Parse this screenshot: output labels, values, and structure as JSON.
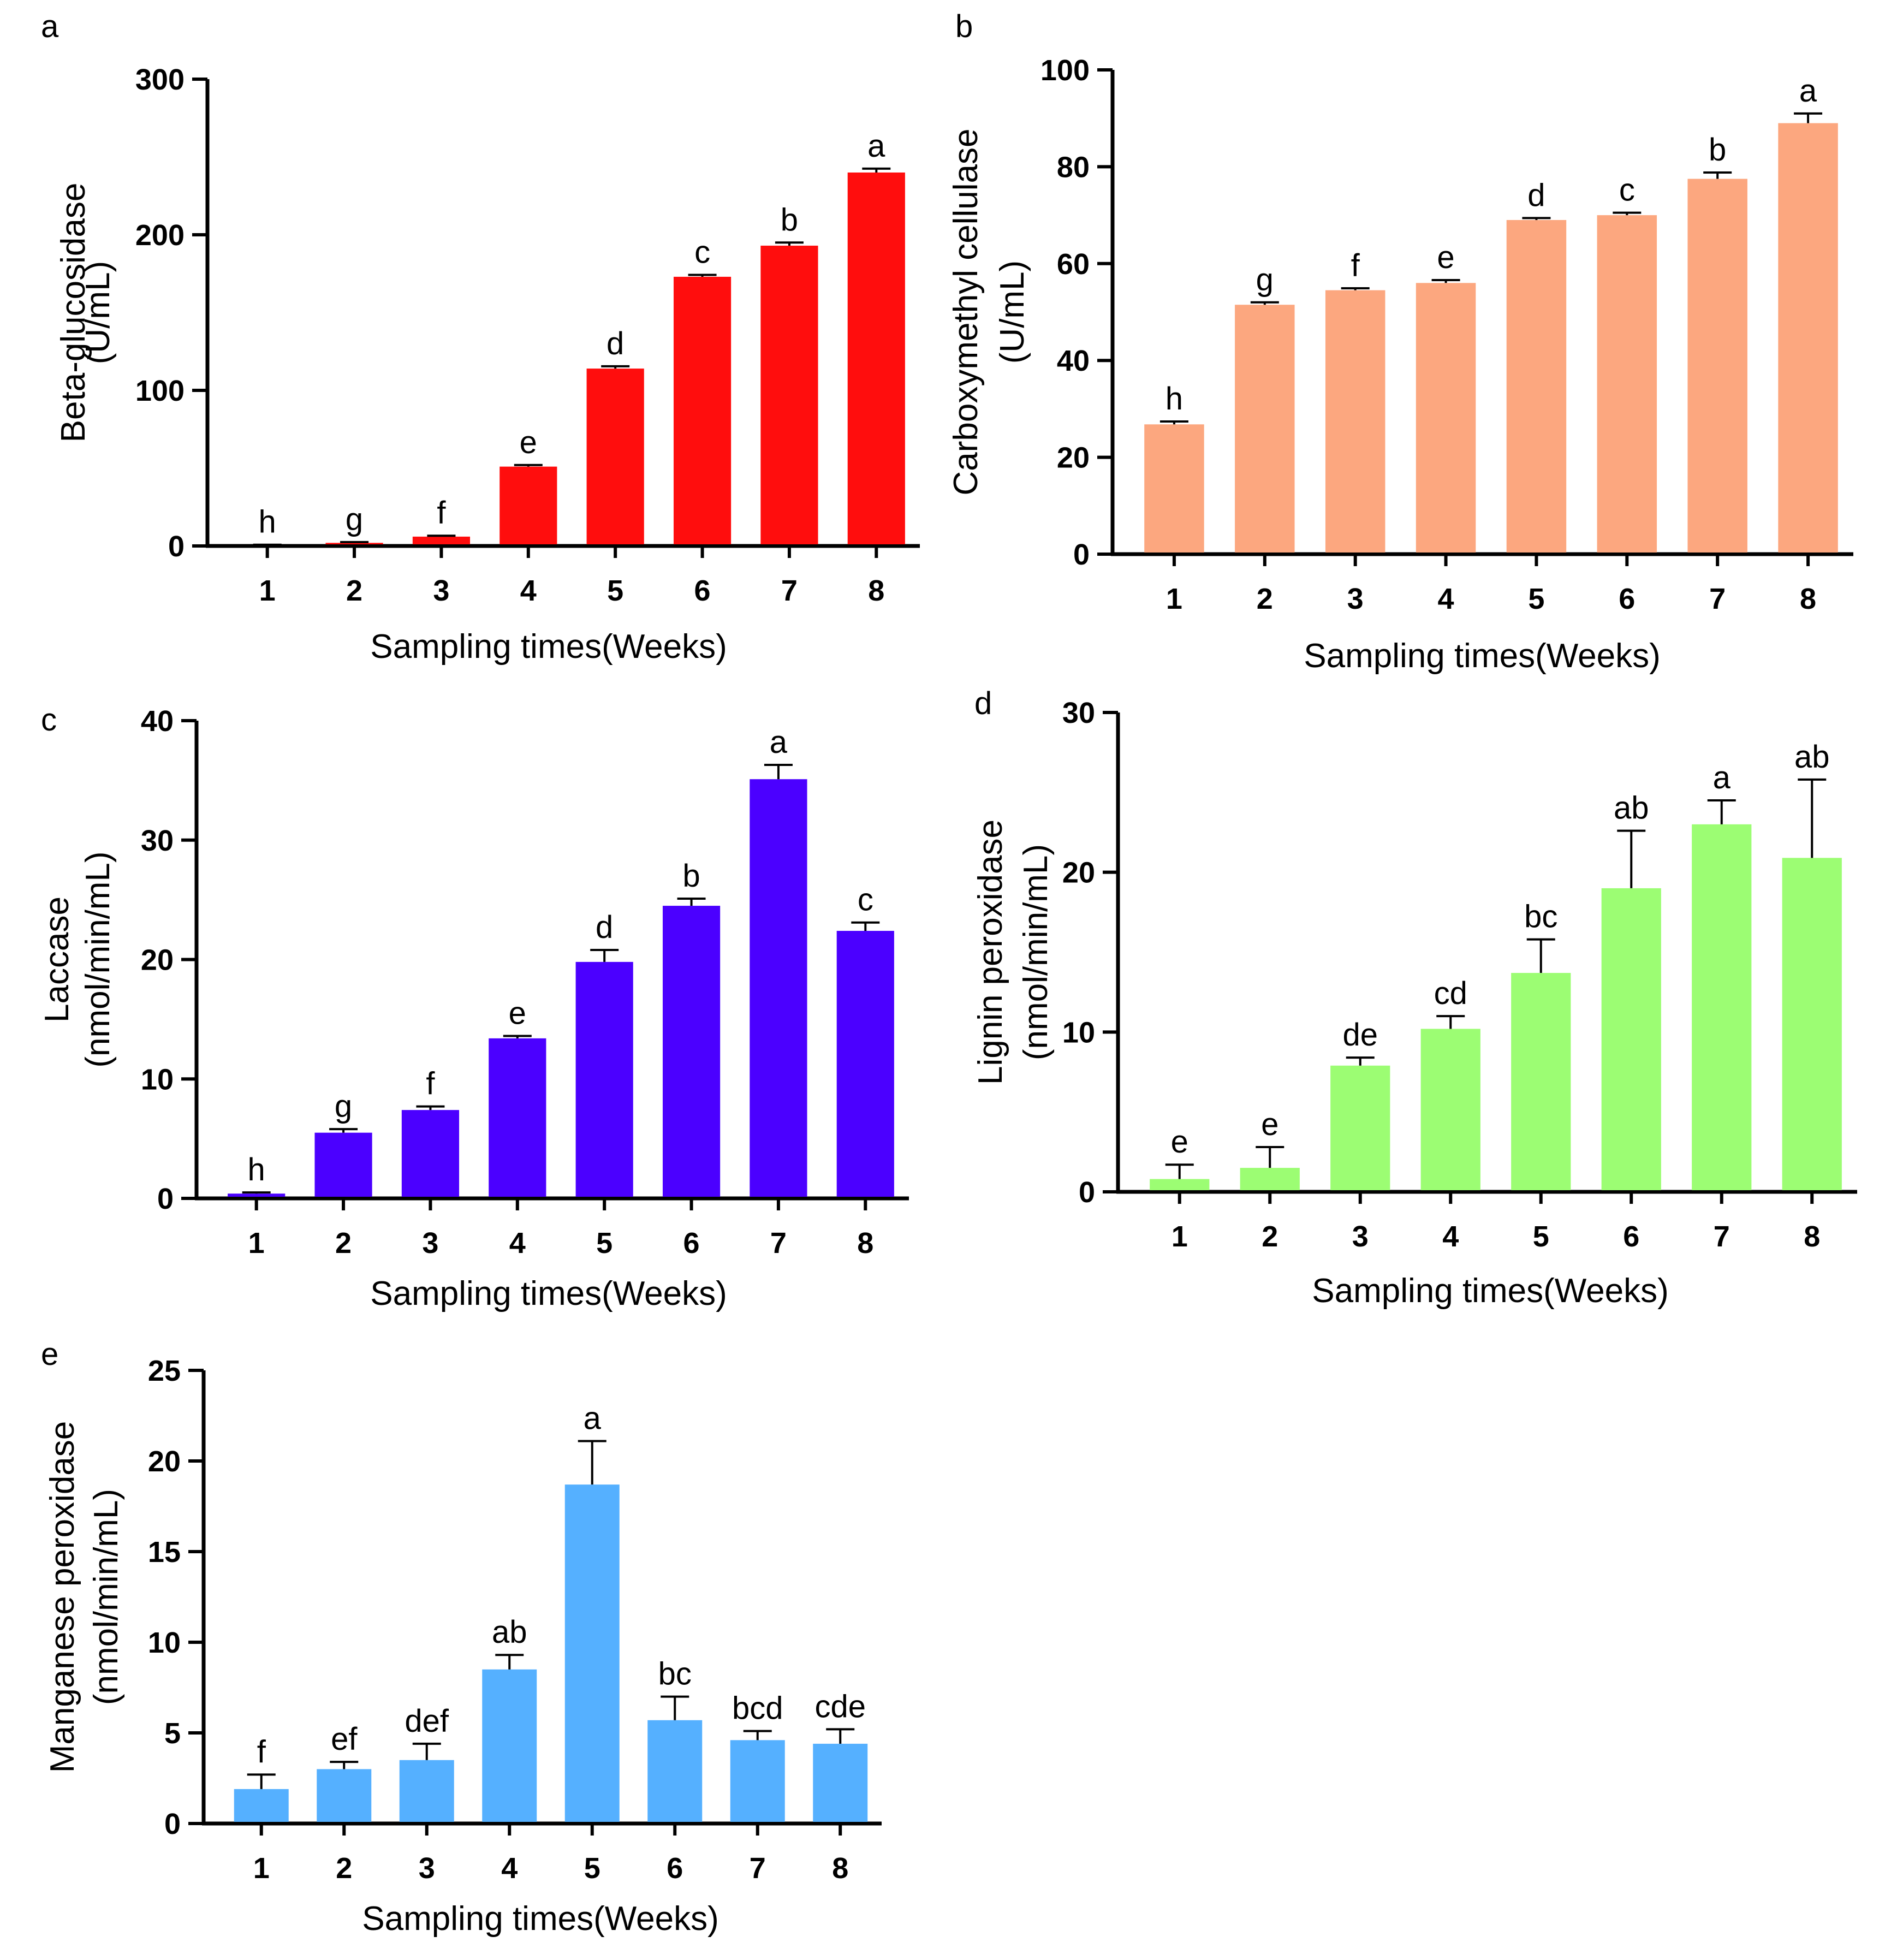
{
  "figure": {
    "panels": [
      "a",
      "b",
      "c",
      "d",
      "e"
    ]
  },
  "chart_data": [
    {
      "panel": "a",
      "type": "bar",
      "color": "#ff0d0d",
      "categories": [
        "1",
        "2",
        "3",
        "4",
        "5",
        "6",
        "7",
        "8"
      ],
      "values": [
        0.5,
        2,
        6,
        51,
        114,
        173,
        193,
        240
      ],
      "errors": [
        0.3,
        0.5,
        0.6,
        1,
        1.5,
        1.2,
        2,
        2.5
      ],
      "letters": [
        "h",
        "g",
        "f",
        "e",
        "d",
        "c",
        "b",
        "a"
      ],
      "ylabel_lines": [
        "Beta-glucosidase",
        "(U/mL)"
      ],
      "xlabel": "Sampling  times(Weeks)",
      "ylim": [
        0,
        300
      ],
      "yticks": [
        0,
        100,
        200,
        300
      ]
    },
    {
      "panel": "b",
      "type": "bar",
      "color": "#fca77f",
      "categories": [
        "1",
        "2",
        "3",
        "4",
        "5",
        "6",
        "7",
        "8"
      ],
      "values": [
        26.8,
        51.5,
        54.5,
        56,
        69,
        70,
        77.5,
        89
      ],
      "errors": [
        0.6,
        0.5,
        0.4,
        0.6,
        0.4,
        0.5,
        1.3,
        2
      ],
      "letters": [
        "h",
        "g",
        "f",
        "e",
        "d",
        "c",
        "b",
        "a"
      ],
      "ylabel_lines": [
        "Carboxymethyl cellulase",
        "(U/mL)"
      ],
      "xlabel": "Sampling  times(Weeks)",
      "ylim": [
        0,
        100
      ],
      "yticks": [
        0,
        20,
        40,
        60,
        80,
        100
      ]
    },
    {
      "panel": "c",
      "type": "bar",
      "color": "#4b00ff",
      "categories": [
        "1",
        "2",
        "3",
        "4",
        "5",
        "6",
        "7",
        "8"
      ],
      "values": [
        0.4,
        5.5,
        7.4,
        13.4,
        19.8,
        24.5,
        35.1,
        22.4
      ],
      "errors": [
        0.1,
        0.3,
        0.3,
        0.2,
        1.0,
        0.6,
        1.2,
        0.7
      ],
      "letters": [
        "h",
        "g",
        "f",
        "e",
        "d",
        "b",
        "a",
        "c"
      ],
      "ylabel_lines": [
        "Laccase",
        "(nmol/min/mL)"
      ],
      "xlabel": "Sampling  times(Weeks)",
      "ylim": [
        0,
        40
      ],
      "yticks": [
        0,
        10,
        20,
        30,
        40
      ]
    },
    {
      "panel": "d",
      "type": "bar",
      "color": "#9cfd73",
      "categories": [
        "1",
        "2",
        "3",
        "4",
        "5",
        "6",
        "7",
        "8"
      ],
      "values": [
        0.8,
        1.5,
        7.9,
        10.2,
        13.7,
        19.0,
        23.0,
        20.9
      ],
      "errors": [
        0.9,
        1.3,
        0.5,
        0.8,
        2.1,
        3.6,
        1.5,
        4.9
      ],
      "letters": [
        "e",
        "e",
        "de",
        "cd",
        "bc",
        "ab",
        "a",
        "ab"
      ],
      "ylabel_lines": [
        "Lignin peroxidase",
        "(nmol/min/mL)"
      ],
      "xlabel": "Sampling  times(Weeks)",
      "ylim": [
        0,
        30
      ],
      "yticks": [
        0,
        10,
        20,
        30
      ]
    },
    {
      "panel": "e",
      "type": "bar",
      "color": "#55b0ff",
      "categories": [
        "1",
        "2",
        "3",
        "4",
        "5",
        "6",
        "7",
        "8"
      ],
      "values": [
        1.9,
        3.0,
        3.5,
        8.5,
        18.7,
        5.7,
        4.6,
        4.4
      ],
      "errors": [
        0.8,
        0.4,
        0.9,
        0.8,
        2.4,
        1.3,
        0.5,
        0.8
      ],
      "letters": [
        "f",
        "ef",
        "def",
        "ab",
        "a",
        "bc",
        "bcd",
        "cde"
      ],
      "ylabel_lines": [
        "Manganese peroxidase",
        "(nmol/min/mL)"
      ],
      "xlabel": "Sampling  times(Weeks)",
      "ylim": [
        0,
        25
      ],
      "yticks": [
        0,
        5,
        10,
        15,
        20,
        25
      ]
    }
  ]
}
